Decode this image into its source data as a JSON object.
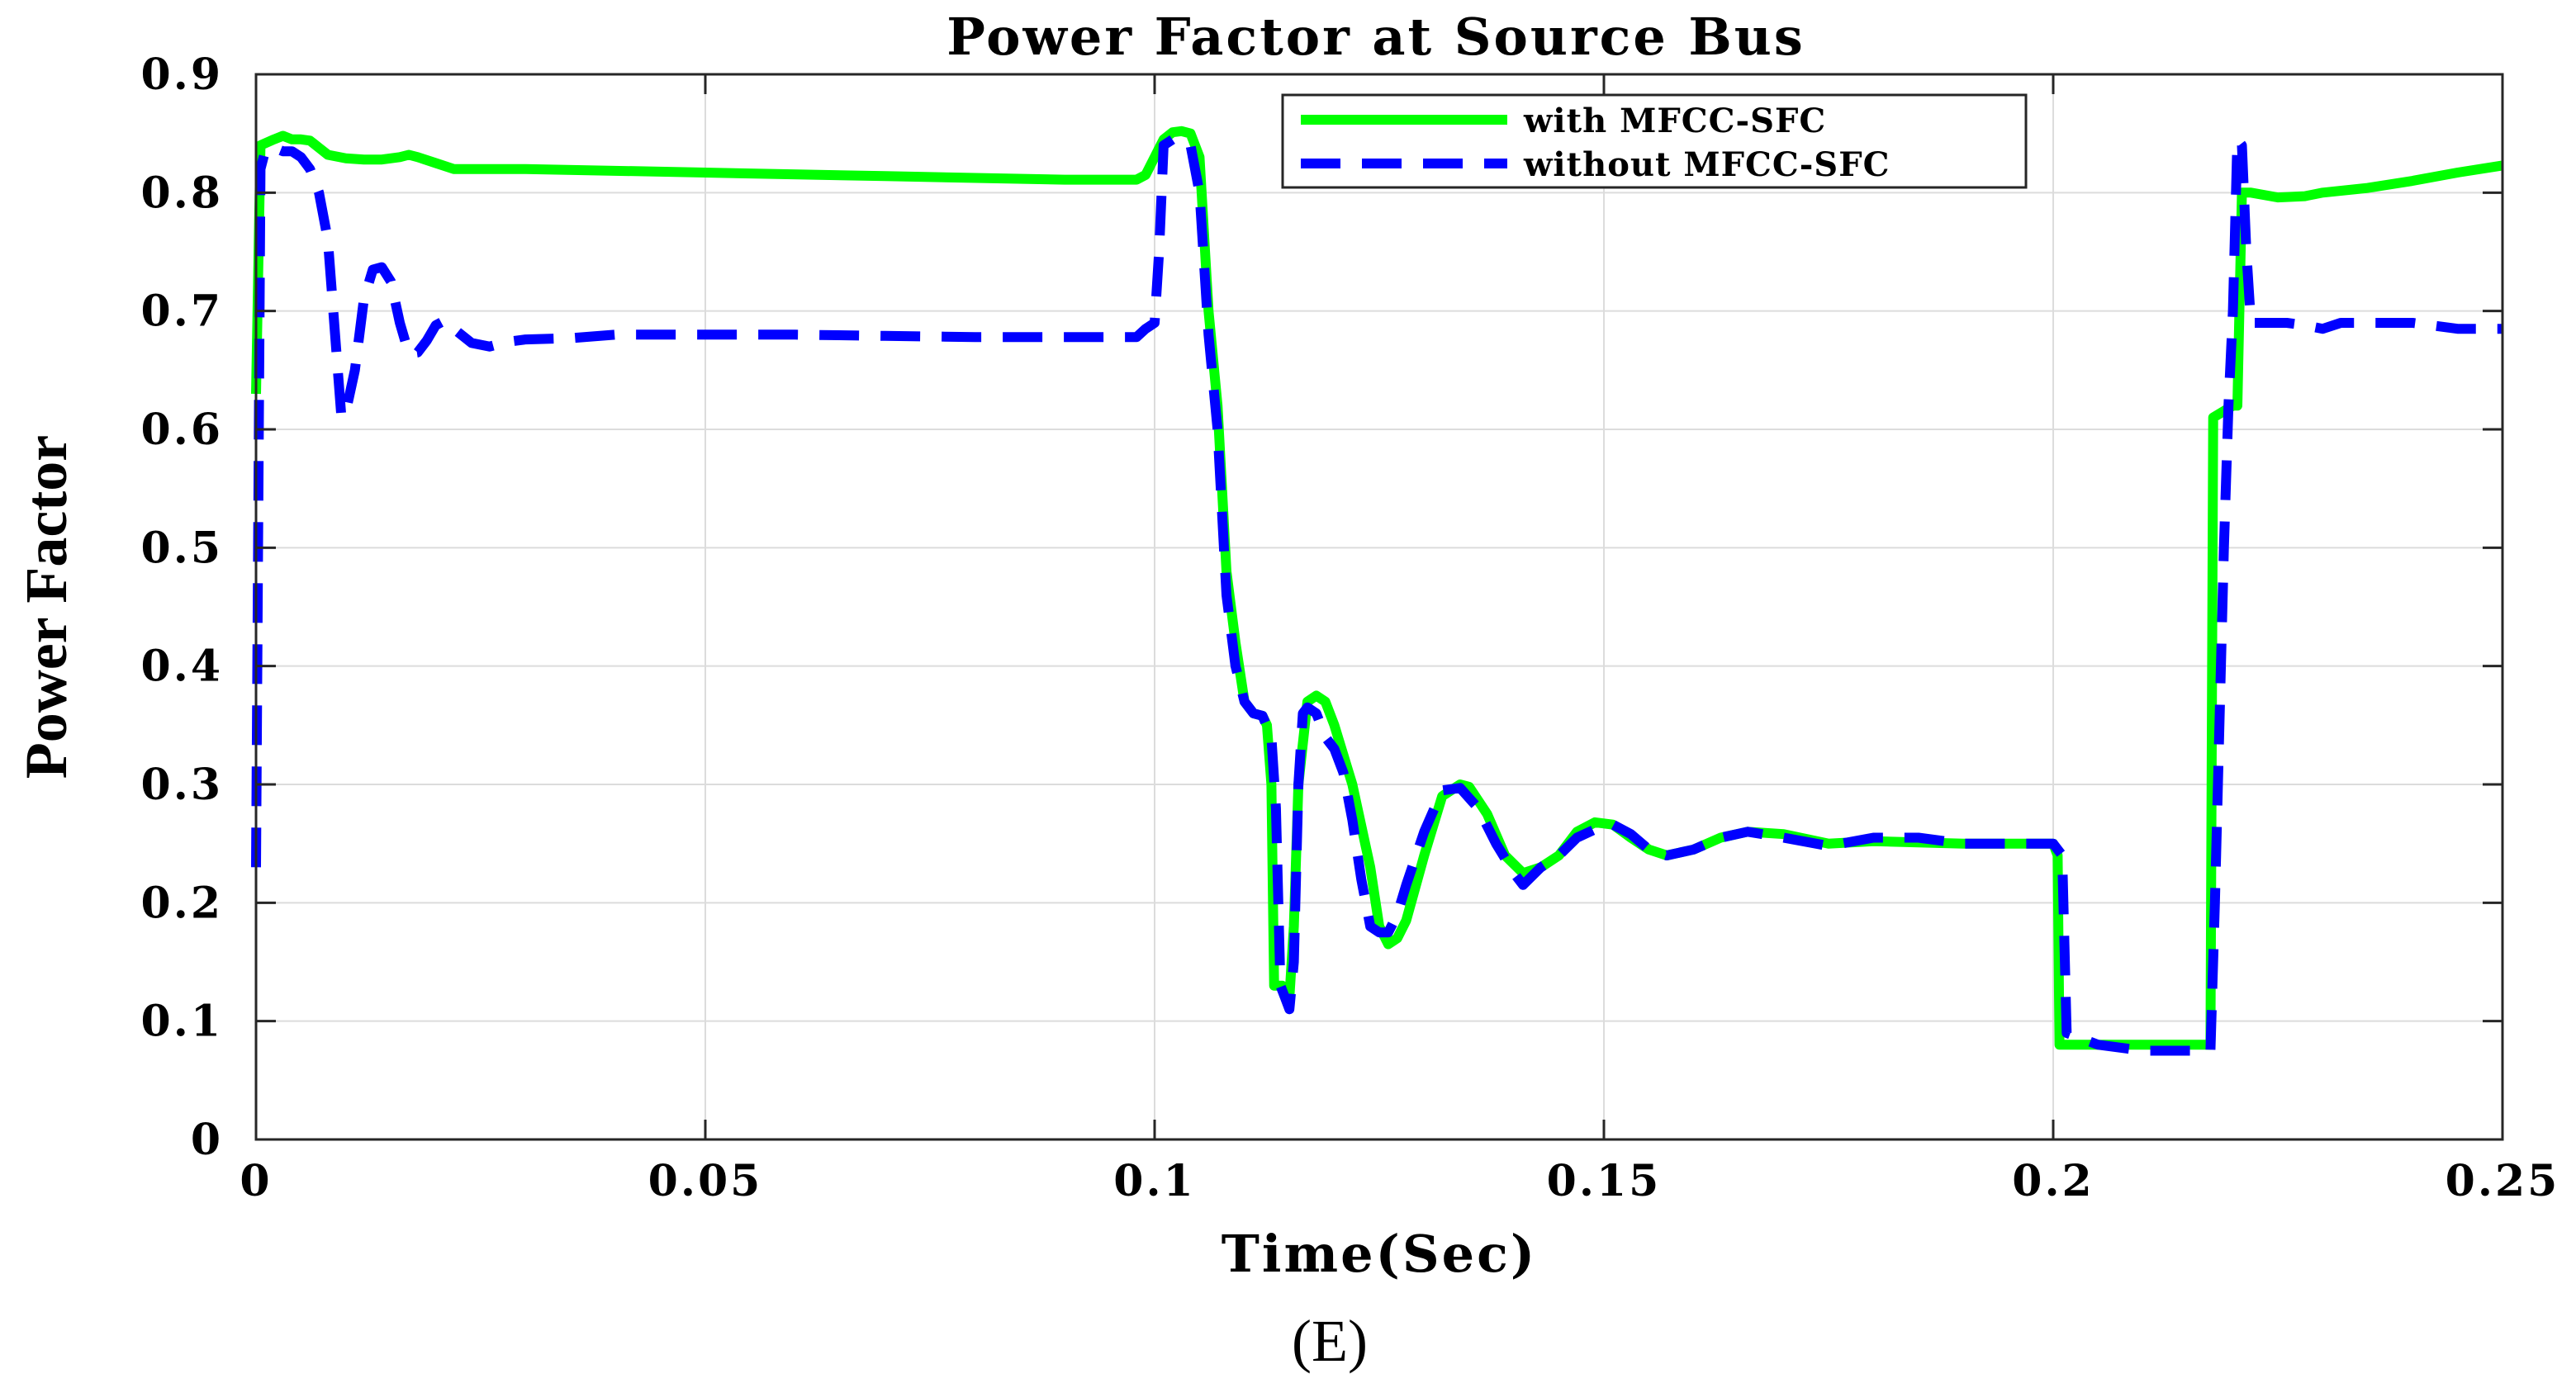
{
  "chart_data": {
    "type": "line",
    "title": "Power Factor at Source Bus",
    "xlabel": "Time(Sec)",
    "ylabel": "Power Factor",
    "caption": "(E)",
    "xlim": [
      0,
      0.25
    ],
    "ylim": [
      0,
      0.9
    ],
    "x_ticks": [
      "0",
      "0.05",
      "0.1",
      "0.15",
      "0.2",
      "0.25"
    ],
    "x_tick_values": [
      0,
      0.05,
      0.1,
      0.15,
      0.2,
      0.25
    ],
    "y_ticks": [
      "0",
      "0.1",
      "0.2",
      "0.3",
      "0.4",
      "0.5",
      "0.6",
      "0.7",
      "0.8",
      "0.9"
    ],
    "y_tick_values": [
      0,
      0.1,
      0.2,
      0.3,
      0.4,
      0.5,
      0.6,
      0.7,
      0.8,
      0.9
    ],
    "grid": true,
    "legend_position": "top-right",
    "series": [
      {
        "name": "with MFCC-SFC",
        "color": "#00ff00",
        "style": "solid",
        "points": [
          [
            0,
            0.63
          ],
          [
            0.0005,
            0.84
          ],
          [
            0.002,
            0.845
          ],
          [
            0.003,
            0.848
          ],
          [
            0.004,
            0.845
          ],
          [
            0.005,
            0.845
          ],
          [
            0.006,
            0.844
          ],
          [
            0.007,
            0.838
          ],
          [
            0.008,
            0.832
          ],
          [
            0.01,
            0.829
          ],
          [
            0.012,
            0.828
          ],
          [
            0.014,
            0.828
          ],
          [
            0.016,
            0.83
          ],
          [
            0.017,
            0.832
          ],
          [
            0.018,
            0.83
          ],
          [
            0.02,
            0.825
          ],
          [
            0.022,
            0.82
          ],
          [
            0.03,
            0.82
          ],
          [
            0.05,
            0.817
          ],
          [
            0.07,
            0.814
          ],
          [
            0.09,
            0.811
          ],
          [
            0.098,
            0.811
          ],
          [
            0.099,
            0.815
          ],
          [
            0.1,
            0.83
          ],
          [
            0.101,
            0.845
          ],
          [
            0.102,
            0.851
          ],
          [
            0.103,
            0.852
          ],
          [
            0.104,
            0.85
          ],
          [
            0.105,
            0.83
          ],
          [
            0.106,
            0.7
          ],
          [
            0.107,
            0.62
          ],
          [
            0.108,
            0.48
          ],
          [
            0.109,
            0.42
          ],
          [
            0.11,
            0.37
          ],
          [
            0.111,
            0.36
          ],
          [
            0.112,
            0.358
          ],
          [
            0.1125,
            0.35
          ],
          [
            0.113,
            0.3
          ],
          [
            0.1133,
            0.13
          ],
          [
            0.1138,
            0.13
          ],
          [
            0.1142,
            0.13
          ],
          [
            0.115,
            0.12
          ],
          [
            0.1155,
            0.18
          ],
          [
            0.116,
            0.3
          ],
          [
            0.117,
            0.37
          ],
          [
            0.118,
            0.375
          ],
          [
            0.119,
            0.37
          ],
          [
            0.12,
            0.35
          ],
          [
            0.122,
            0.3
          ],
          [
            0.124,
            0.23
          ],
          [
            0.125,
            0.18
          ],
          [
            0.126,
            0.165
          ],
          [
            0.127,
            0.17
          ],
          [
            0.128,
            0.185
          ],
          [
            0.13,
            0.24
          ],
          [
            0.132,
            0.29
          ],
          [
            0.134,
            0.3
          ],
          [
            0.135,
            0.298
          ],
          [
            0.137,
            0.275
          ],
          [
            0.139,
            0.24
          ],
          [
            0.141,
            0.225
          ],
          [
            0.143,
            0.23
          ],
          [
            0.145,
            0.24
          ],
          [
            0.147,
            0.26
          ],
          [
            0.149,
            0.268
          ],
          [
            0.151,
            0.266
          ],
          [
            0.153,
            0.255
          ],
          [
            0.155,
            0.245
          ],
          [
            0.157,
            0.24
          ],
          [
            0.16,
            0.245
          ],
          [
            0.163,
            0.255
          ],
          [
            0.166,
            0.26
          ],
          [
            0.17,
            0.258
          ],
          [
            0.175,
            0.25
          ],
          [
            0.18,
            0.252
          ],
          [
            0.19,
            0.25
          ],
          [
            0.2,
            0.25
          ],
          [
            0.2005,
            0.24
          ],
          [
            0.2007,
            0.08
          ],
          [
            0.205,
            0.08
          ],
          [
            0.21,
            0.08
          ],
          [
            0.2175,
            0.08
          ],
          [
            0.2178,
            0.61
          ],
          [
            0.22,
            0.62
          ],
          [
            0.2205,
            0.62
          ],
          [
            0.221,
            0.8
          ],
          [
            0.222,
            0.8
          ],
          [
            0.225,
            0.796
          ],
          [
            0.228,
            0.797
          ],
          [
            0.23,
            0.8
          ],
          [
            0.235,
            0.804
          ],
          [
            0.24,
            0.81
          ],
          [
            0.245,
            0.817
          ],
          [
            0.25,
            0.823
          ]
        ]
      },
      {
        "name": "without MFCC-SFC",
        "color": "#0000ff",
        "style": "dashed",
        "points": [
          [
            0,
            0.23
          ],
          [
            0.0005,
            0.82
          ],
          [
            0.001,
            0.835
          ],
          [
            0.002,
            0.838
          ],
          [
            0.003,
            0.835
          ],
          [
            0.004,
            0.835
          ],
          [
            0.005,
            0.83
          ],
          [
            0.006,
            0.82
          ],
          [
            0.007,
            0.8
          ],
          [
            0.008,
            0.76
          ],
          [
            0.009,
            0.66
          ],
          [
            0.0095,
            0.61
          ],
          [
            0.01,
            0.615
          ],
          [
            0.011,
            0.65
          ],
          [
            0.012,
            0.71
          ],
          [
            0.013,
            0.735
          ],
          [
            0.014,
            0.737
          ],
          [
            0.015,
            0.725
          ],
          [
            0.016,
            0.69
          ],
          [
            0.017,
            0.664
          ],
          [
            0.018,
            0.665
          ],
          [
            0.019,
            0.675
          ],
          [
            0.02,
            0.688
          ],
          [
            0.021,
            0.692
          ],
          [
            0.022,
            0.685
          ],
          [
            0.024,
            0.673
          ],
          [
            0.026,
            0.67
          ],
          [
            0.028,
            0.674
          ],
          [
            0.03,
            0.676
          ],
          [
            0.035,
            0.677
          ],
          [
            0.04,
            0.68
          ],
          [
            0.05,
            0.68
          ],
          [
            0.06,
            0.68
          ],
          [
            0.07,
            0.679
          ],
          [
            0.08,
            0.678
          ],
          [
            0.09,
            0.678
          ],
          [
            0.098,
            0.678
          ],
          [
            0.099,
            0.685
          ],
          [
            0.1,
            0.69
          ],
          [
            0.1005,
            0.75
          ],
          [
            0.101,
            0.84
          ],
          [
            0.102,
            0.845
          ],
          [
            0.103,
            0.845
          ],
          [
            0.104,
            0.84
          ],
          [
            0.105,
            0.8
          ],
          [
            0.106,
            0.68
          ],
          [
            0.107,
            0.6
          ],
          [
            0.108,
            0.46
          ],
          [
            0.109,
            0.4
          ],
          [
            0.11,
            0.37
          ],
          [
            0.111,
            0.36
          ],
          [
            0.112,
            0.358
          ],
          [
            0.113,
            0.34
          ],
          [
            0.1135,
            0.28
          ],
          [
            0.114,
            0.13
          ],
          [
            0.1145,
            0.12
          ],
          [
            0.115,
            0.11
          ],
          [
            0.1155,
            0.15
          ],
          [
            0.116,
            0.3
          ],
          [
            0.1165,
            0.36
          ],
          [
            0.117,
            0.365
          ],
          [
            0.118,
            0.36
          ],
          [
            0.119,
            0.34
          ],
          [
            0.12,
            0.33
          ],
          [
            0.121,
            0.31
          ],
          [
            0.122,
            0.27
          ],
          [
            0.123,
            0.22
          ],
          [
            0.124,
            0.18
          ],
          [
            0.125,
            0.175
          ],
          [
            0.126,
            0.175
          ],
          [
            0.127,
            0.19
          ],
          [
            0.128,
            0.215
          ],
          [
            0.13,
            0.26
          ],
          [
            0.132,
            0.295
          ],
          [
            0.134,
            0.297
          ],
          [
            0.136,
            0.28
          ],
          [
            0.138,
            0.25
          ],
          [
            0.14,
            0.225
          ],
          [
            0.141,
            0.215
          ],
          [
            0.143,
            0.23
          ],
          [
            0.145,
            0.24
          ],
          [
            0.147,
            0.255
          ],
          [
            0.149,
            0.262
          ],
          [
            0.151,
            0.266
          ],
          [
            0.153,
            0.258
          ],
          [
            0.155,
            0.245
          ],
          [
            0.157,
            0.24
          ],
          [
            0.16,
            0.245
          ],
          [
            0.163,
            0.255
          ],
          [
            0.166,
            0.26
          ],
          [
            0.17,
            0.255
          ],
          [
            0.175,
            0.248
          ],
          [
            0.18,
            0.255
          ],
          [
            0.185,
            0.255
          ],
          [
            0.19,
            0.25
          ],
          [
            0.195,
            0.25
          ],
          [
            0.2,
            0.25
          ],
          [
            0.201,
            0.24
          ],
          [
            0.2015,
            0.09
          ],
          [
            0.205,
            0.08
          ],
          [
            0.21,
            0.075
          ],
          [
            0.2175,
            0.075
          ],
          [
            0.218,
            0.2
          ],
          [
            0.219,
            0.5
          ],
          [
            0.2195,
            0.62
          ],
          [
            0.22,
            0.7
          ],
          [
            0.2205,
            0.845
          ],
          [
            0.221,
            0.84
          ],
          [
            0.2215,
            0.75
          ],
          [
            0.222,
            0.69
          ],
          [
            0.224,
            0.69
          ],
          [
            0.226,
            0.69
          ],
          [
            0.228,
            0.688
          ],
          [
            0.23,
            0.685
          ],
          [
            0.232,
            0.69
          ],
          [
            0.235,
            0.69
          ],
          [
            0.24,
            0.69
          ],
          [
            0.245,
            0.685
          ],
          [
            0.25,
            0.685
          ]
        ]
      }
    ]
  }
}
